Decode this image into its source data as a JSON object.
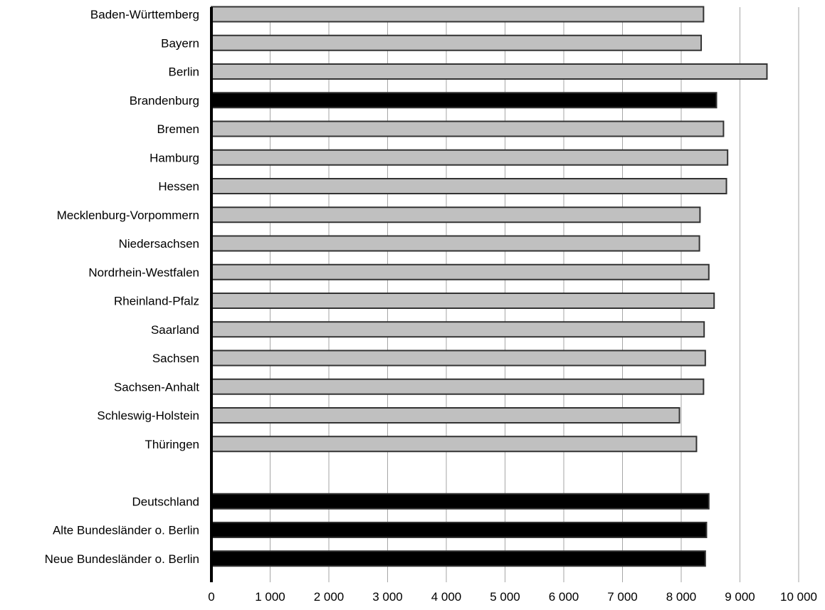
{
  "chart_data": {
    "type": "bar",
    "orientation": "horizontal",
    "title": "",
    "xlabel": "",
    "ylabel": "",
    "xlim": [
      0,
      10000
    ],
    "grid": true,
    "legend": "none",
    "x_ticks": [
      {
        "value": 0,
        "label": "0"
      },
      {
        "value": 1000,
        "label": "1 000"
      },
      {
        "value": 2000,
        "label": "2 000"
      },
      {
        "value": 3000,
        "label": "3 000"
      },
      {
        "value": 4000,
        "label": "4 000"
      },
      {
        "value": 5000,
        "label": "5 000"
      },
      {
        "value": 6000,
        "label": "6 000"
      },
      {
        "value": 7000,
        "label": "7 000"
      },
      {
        "value": 8000,
        "label": "8 000"
      },
      {
        "value": 9000,
        "label": "9 000"
      },
      {
        "value": 10000,
        "label": "10 000"
      }
    ],
    "colors": {
      "default": "#c0c0c0",
      "highlight": "#000000",
      "border": "#333333",
      "grid": "#a6a6a6"
    },
    "categories": [
      "Baden-Württemberg",
      "Bayern",
      "Berlin",
      "Brandenburg",
      "Bremen",
      "Hamburg",
      "Hessen",
      "Mecklenburg-Vorpommern",
      "Niedersachsen",
      "Nordrhein-Westfalen",
      "Rheinland-Pfalz",
      "Saarland",
      "Sachsen",
      "Sachsen-Anhalt",
      "Schleswig-Holstein",
      "Thüringen",
      "",
      "Deutschland",
      "Alte Bundesländer o. Berlin",
      "Neue Bundesländer o. Berlin"
    ],
    "values": [
      8380,
      8340,
      9460,
      8600,
      8720,
      8790,
      8770,
      8320,
      8310,
      8470,
      8560,
      8390,
      8410,
      8380,
      7970,
      8260,
      null,
      8470,
      8430,
      8410
    ],
    "highlighted": [
      false,
      false,
      false,
      true,
      false,
      false,
      false,
      false,
      false,
      false,
      false,
      false,
      false,
      false,
      false,
      false,
      false,
      true,
      true,
      true
    ]
  }
}
